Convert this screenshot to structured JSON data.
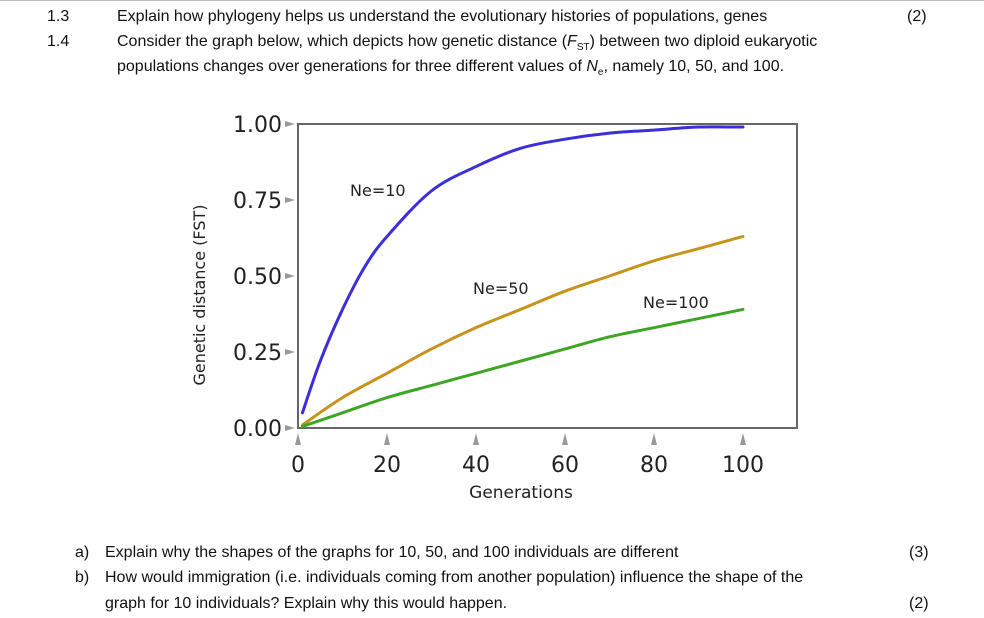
{
  "questions": [
    {
      "number": "1.3",
      "text": "Explain how phylogeny helps us understand the evolutionary histories of populations, genes",
      "marks": "(2)"
    },
    {
      "number": "1.4",
      "text_before": "Consider the graph below, which depicts how genetic distance (",
      "f_symbol": "F",
      "f_sub": "ST",
      "text_after": ") between two diploid eukaryotic",
      "line2_before": "populations changes over generations for three different values of ",
      "n_symbol": "N",
      "n_sub": "e",
      "line2_after": ", namely 10, 50, and 100."
    }
  ],
  "subquestions": [
    {
      "label": "a)",
      "text": "Explain why the shapes of the graphs for 10, 50, and 100 individuals are different",
      "marks": "(3)"
    },
    {
      "label": "b)",
      "text": "How would immigration (i.e. individuals coming from another population) influence the shape of the",
      "text2": "graph for 10 individuals? Explain why this would happen.",
      "marks": "(2)"
    }
  ],
  "chart_data": {
    "type": "line",
    "title": "",
    "xlabel": "Generations",
    "ylabel": "Genetic distance (FST)",
    "xlim": [
      0,
      100
    ],
    "ylim": [
      0,
      1
    ],
    "xticks": [
      "0",
      "20",
      "40",
      "60",
      "80",
      "100"
    ],
    "yticks": [
      "0.00",
      "0.25",
      "0.50",
      "0.75",
      "1.00"
    ],
    "grid": false,
    "series": [
      {
        "name": "Ne=10",
        "color": "#3a2fd8",
        "x": [
          1,
          5,
          10,
          15,
          20,
          30,
          40,
          50,
          60,
          70,
          80,
          90,
          100
        ],
        "y": [
          0.05,
          0.22,
          0.39,
          0.53,
          0.63,
          0.78,
          0.86,
          0.92,
          0.95,
          0.97,
          0.98,
          0.99,
          0.99
        ]
      },
      {
        "name": "Ne=50",
        "color": "#c8931a",
        "x": [
          1,
          10,
          20,
          30,
          40,
          50,
          60,
          70,
          80,
          90,
          100
        ],
        "y": [
          0.01,
          0.1,
          0.18,
          0.26,
          0.33,
          0.39,
          0.45,
          0.5,
          0.55,
          0.59,
          0.63
        ]
      },
      {
        "name": "Ne=100",
        "color": "#3fa526",
        "x": [
          1,
          10,
          20,
          30,
          40,
          50,
          60,
          70,
          80,
          90,
          100
        ],
        "y": [
          0.005,
          0.05,
          0.1,
          0.14,
          0.18,
          0.22,
          0.26,
          0.3,
          0.33,
          0.36,
          0.39
        ]
      }
    ]
  }
}
